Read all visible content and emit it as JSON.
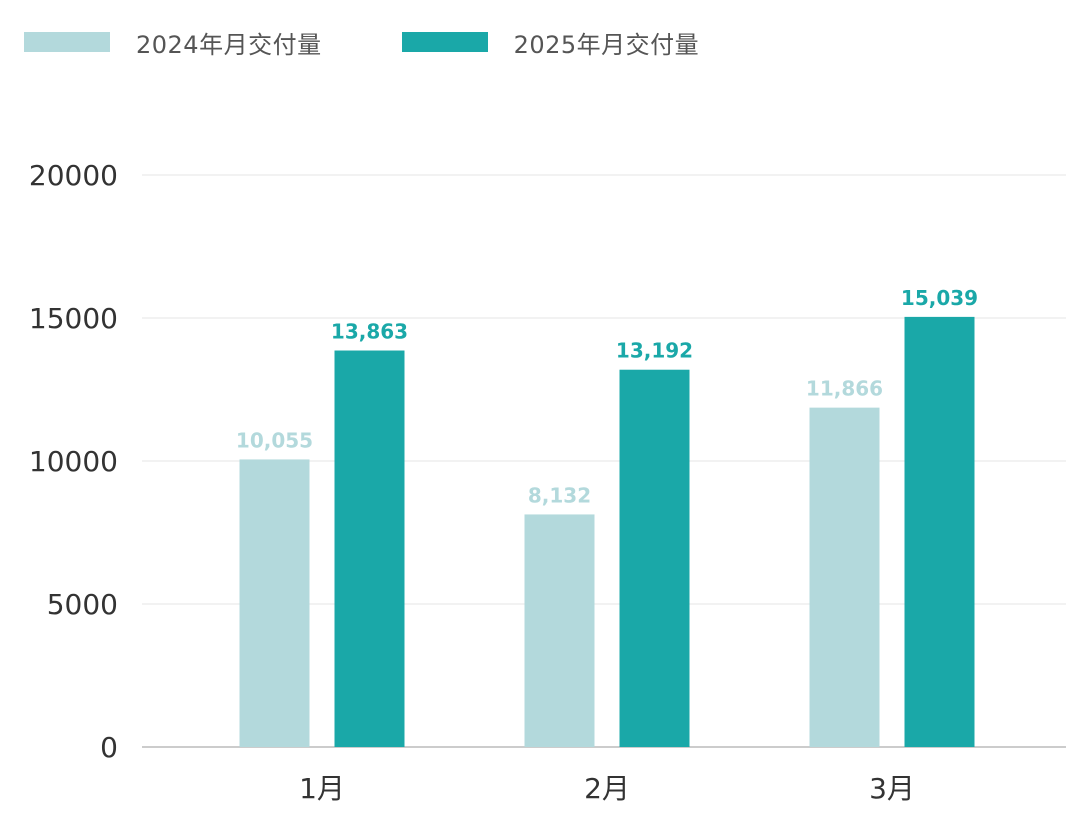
{
  "chart_data": {
    "type": "bar",
    "categories": [
      "1月",
      "2月",
      "3月"
    ],
    "series": [
      {
        "name": "2024年月交付量",
        "color": "#b3d9dc",
        "values": [
          10055,
          8132,
          11866
        ],
        "labels": [
          "10,055",
          "8,132",
          "11,866"
        ]
      },
      {
        "name": "2025年月交付量",
        "color": "#1aa8a8",
        "values": [
          13863,
          13192,
          15039
        ],
        "labels": [
          "13,863",
          "13,192",
          "15,039"
        ]
      }
    ],
    "yticks": [
      "0",
      "5000",
      "10000",
      "15000",
      "20000"
    ],
    "ylim": [
      0,
      20000
    ],
    "grid": true,
    "legend_position": "top-left",
    "gridline_color": "#eeeeee",
    "axis_color": "#cccccc"
  }
}
